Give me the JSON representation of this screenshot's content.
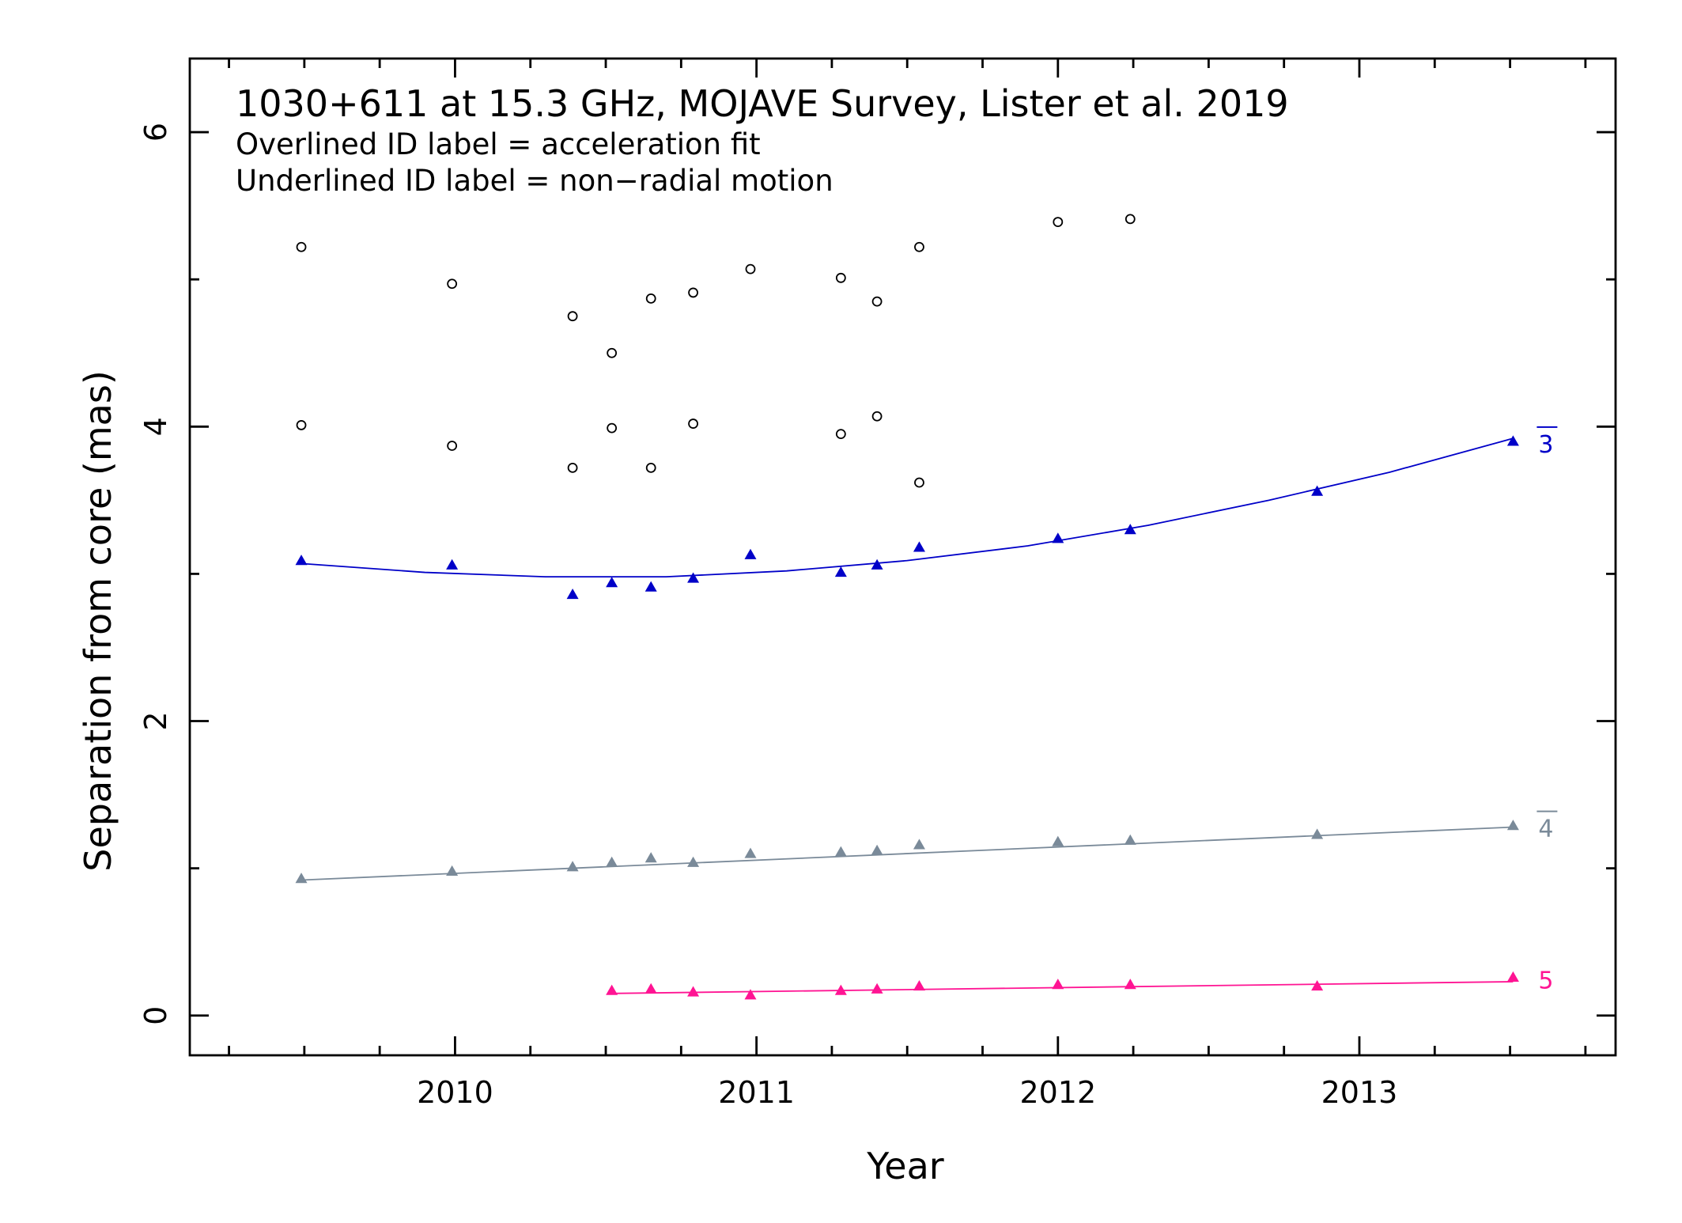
{
  "chart_data": {
    "type": "scatter",
    "title": "1030+611 at 15.3 GHz, MOJAVE Survey, Lister et al. 2019",
    "annotations": [
      "Overlined ID label = acceleration fit",
      "Underlined ID label = non−radial motion"
    ],
    "xlabel": "Year",
    "ylabel": "Separation from core (mas)",
    "xlim": [
      2009.12,
      2013.85
    ],
    "ylim": [
      -0.27,
      6.5
    ],
    "x_ticks": [
      2010,
      2011,
      2012,
      2013
    ],
    "x_tick_labels": [
      "2010",
      "2011",
      "2012",
      "2013"
    ],
    "y_ticks": [
      0,
      2,
      4,
      6
    ],
    "y_tick_labels": [
      "0",
      "2",
      "4",
      "6"
    ],
    "grid": false,
    "series": [
      {
        "name": "3",
        "overlined": true,
        "color": "#0000c8",
        "marker": "triangle",
        "points": [
          [
            2009.49,
            3.09
          ],
          [
            2009.99,
            3.06
          ],
          [
            2010.39,
            2.86
          ],
          [
            2010.52,
            2.94
          ],
          [
            2010.65,
            2.91
          ],
          [
            2010.79,
            2.97
          ],
          [
            2010.98,
            3.13
          ],
          [
            2011.28,
            3.01
          ],
          [
            2011.4,
            3.06
          ],
          [
            2011.54,
            3.18
          ],
          [
            2012.0,
            3.24
          ],
          [
            2012.24,
            3.3
          ],
          [
            2012.86,
            3.56
          ],
          [
            2013.51,
            3.9
          ]
        ],
        "fit": {
          "kind": "quadratic",
          "x": [
            2009.49,
            2009.9,
            2010.3,
            2010.7,
            2011.1,
            2011.5,
            2011.9,
            2012.3,
            2012.7,
            2013.1,
            2013.51
          ],
          "y": [
            3.07,
            3.01,
            2.98,
            2.98,
            3.02,
            3.09,
            3.19,
            3.33,
            3.5,
            3.69,
            3.92
          ]
        }
      },
      {
        "name": "4",
        "overlined": true,
        "color": "#7a8a99",
        "marker": "triangle",
        "points": [
          [
            2009.49,
            0.93
          ],
          [
            2009.99,
            0.98
          ],
          [
            2010.39,
            1.01
          ],
          [
            2010.52,
            1.04
          ],
          [
            2010.65,
            1.07
          ],
          [
            2010.79,
            1.04
          ],
          [
            2010.98,
            1.1
          ],
          [
            2011.28,
            1.11
          ],
          [
            2011.4,
            1.12
          ],
          [
            2011.54,
            1.16
          ],
          [
            2012.0,
            1.18
          ],
          [
            2012.24,
            1.19
          ],
          [
            2012.86,
            1.23
          ],
          [
            2013.51,
            1.29
          ]
        ],
        "fit": {
          "kind": "linear",
          "x": [
            2009.49,
            2013.51
          ],
          "y": [
            0.92,
            1.28
          ]
        }
      },
      {
        "name": "5",
        "overlined": false,
        "color": "#ff1493",
        "marker": "triangle",
        "points": [
          [
            2010.52,
            0.17
          ],
          [
            2010.65,
            0.18
          ],
          [
            2010.79,
            0.16
          ],
          [
            2010.98,
            0.14
          ],
          [
            2011.28,
            0.17
          ],
          [
            2011.4,
            0.18
          ],
          [
            2011.54,
            0.2
          ],
          [
            2012.0,
            0.21
          ],
          [
            2012.24,
            0.21
          ],
          [
            2012.86,
            0.2
          ],
          [
            2013.51,
            0.26
          ]
        ],
        "fit": {
          "kind": "linear",
          "x": [
            2010.52,
            2013.51
          ],
          "y": [
            0.15,
            0.23
          ]
        }
      },
      {
        "name": "",
        "color": "#000000",
        "marker": "open-circle",
        "points": [
          [
            2009.49,
            5.22
          ],
          [
            2009.49,
            4.01
          ],
          [
            2009.99,
            4.97
          ],
          [
            2009.99,
            3.87
          ],
          [
            2010.39,
            4.75
          ],
          [
            2010.39,
            3.72
          ],
          [
            2010.52,
            4.5
          ],
          [
            2010.52,
            3.99
          ],
          [
            2010.65,
            4.87
          ],
          [
            2010.65,
            3.72
          ],
          [
            2010.79,
            4.91
          ],
          [
            2010.79,
            4.02
          ],
          [
            2010.98,
            5.07
          ],
          [
            2011.28,
            5.01
          ],
          [
            2011.28,
            3.95
          ],
          [
            2011.4,
            4.85
          ],
          [
            2011.4,
            4.07
          ],
          [
            2011.54,
            5.22
          ],
          [
            2011.54,
            3.62
          ],
          [
            2012.0,
            5.39
          ],
          [
            2012.24,
            5.41
          ]
        ]
      }
    ]
  }
}
